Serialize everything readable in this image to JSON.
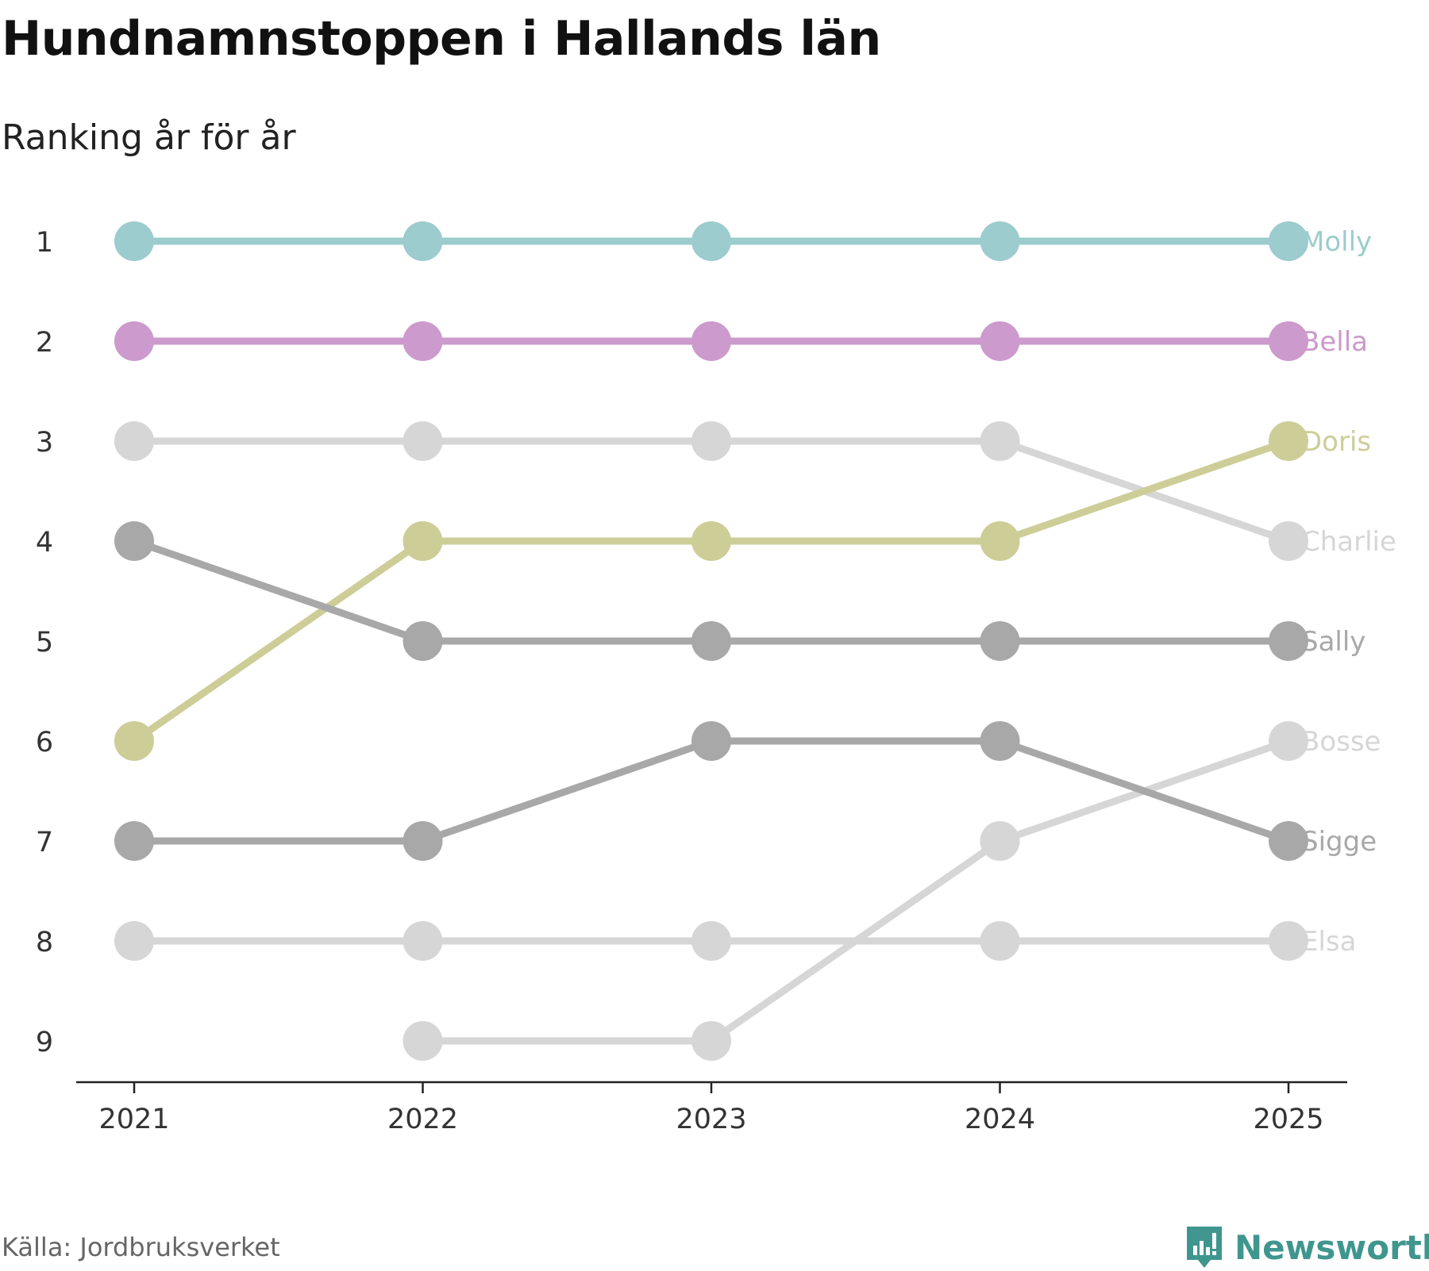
{
  "chart_data": {
    "type": "line",
    "title": "Hundnamnstoppen i Hallands län",
    "subtitle": "Ranking år för år",
    "xlabel": "",
    "ylabel": "",
    "x": [
      "2021",
      "2022",
      "2023",
      "2024",
      "2025"
    ],
    "y_ticks": [
      "1",
      "2",
      "3",
      "4",
      "5",
      "6",
      "7",
      "8",
      "9"
    ],
    "ylim": [
      1,
      9
    ],
    "y_inverted": true,
    "series": [
      {
        "name": "Molly",
        "color": "#9ccccd",
        "values": [
          1,
          1,
          1,
          1,
          1
        ]
      },
      {
        "name": "Bella",
        "color": "#cc9acc",
        "values": [
          2,
          2,
          2,
          2,
          2
        ]
      },
      {
        "name": "Charlie",
        "color": "#d6d6d6",
        "values": [
          3,
          3,
          3,
          3,
          4
        ]
      },
      {
        "name": "Doris",
        "color": "#cdcd98",
        "values": [
          6,
          4,
          4,
          4,
          3
        ]
      },
      {
        "name": "Sally",
        "color": "#a8a8a8",
        "values": [
          4,
          5,
          5,
          5,
          5
        ]
      },
      {
        "name": "Bosse",
        "color": "#d6d6d6",
        "values": [
          null,
          9,
          9,
          7,
          6
        ]
      },
      {
        "name": "Sigge",
        "color": "#a8a8a8",
        "values": [
          7,
          7,
          6,
          6,
          7
        ]
      },
      {
        "name": "Elsa",
        "color": "#d6d6d6",
        "values": [
          8,
          8,
          8,
          8,
          8
        ]
      }
    ]
  },
  "footer": {
    "source": "Källa: Jordbruksverket",
    "brand": "Newsworthy",
    "brand_color": "#3f968e",
    "brand_icon": "bar-chart-speech-bubble-icon"
  }
}
